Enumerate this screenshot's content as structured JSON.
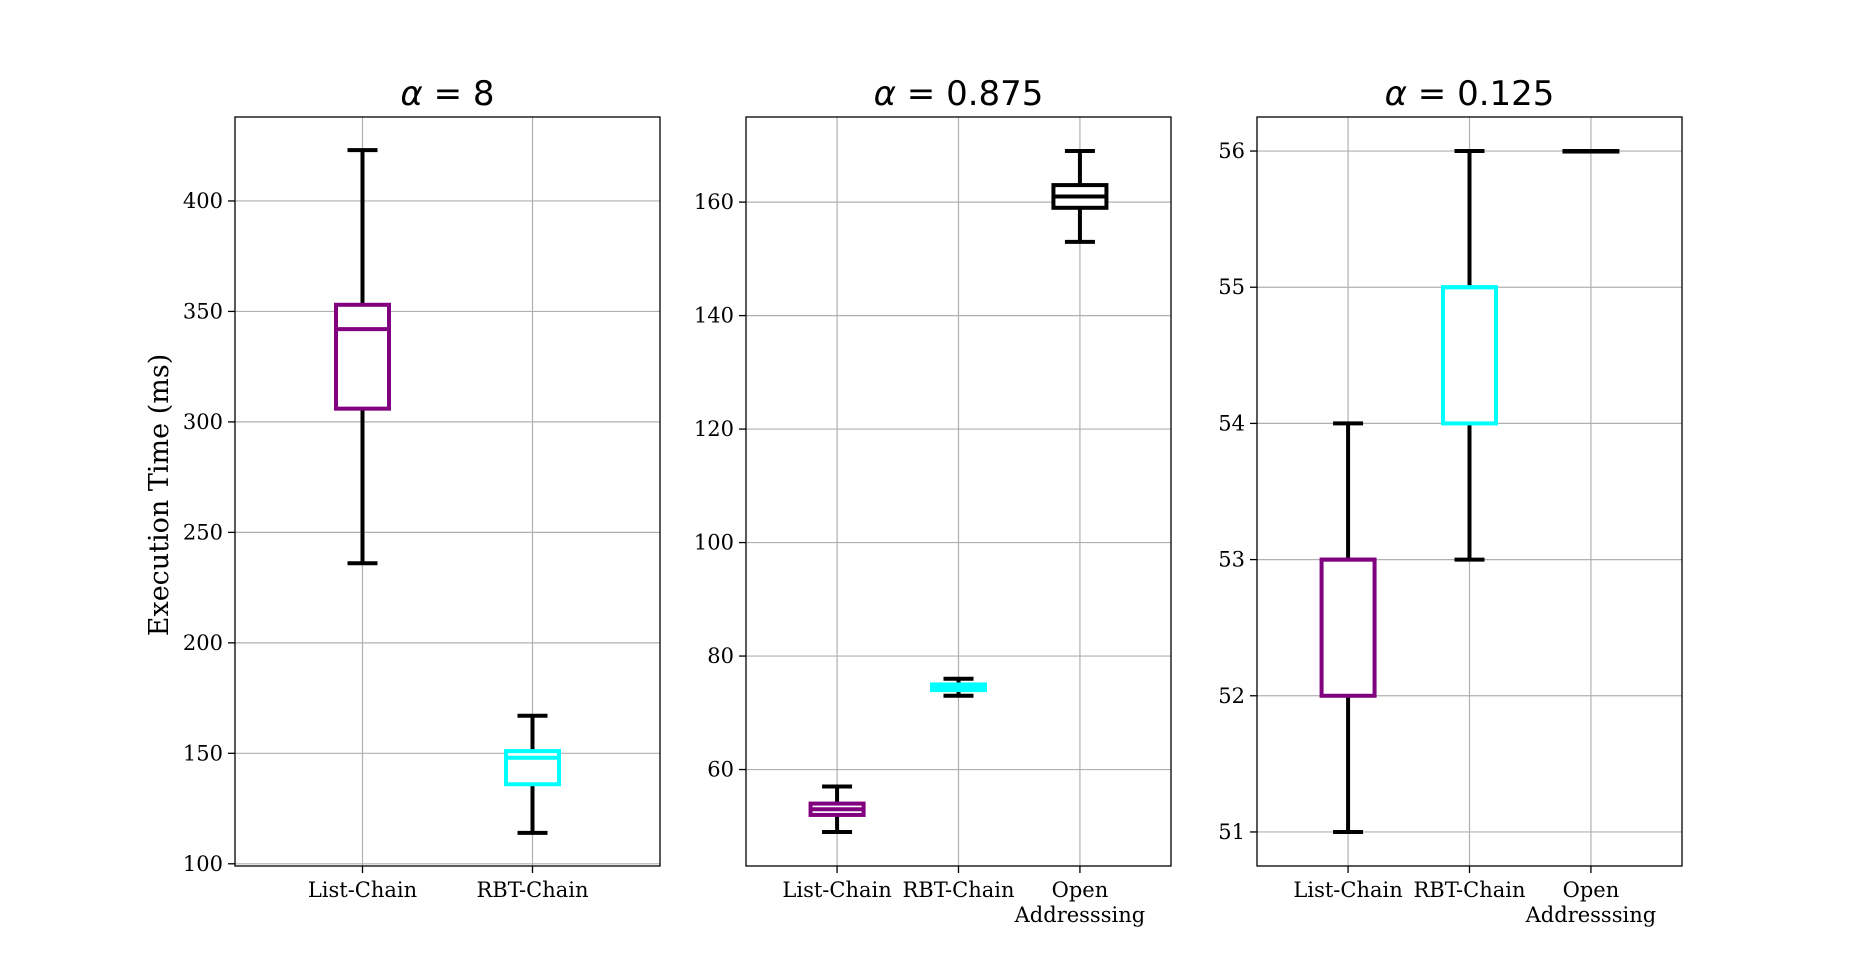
{
  "figure": {
    "ylabel": "Execution Time (ms)"
  },
  "chart_data": [
    {
      "type": "box",
      "title_symbol": "α",
      "title_value": " = 8",
      "ylim": [
        99,
        438
      ],
      "yticks": [
        100,
        150,
        200,
        250,
        300,
        350,
        400
      ],
      "grid": true,
      "categories": [
        "List-Chain",
        "RBT-Chain"
      ],
      "boxes": [
        {
          "label": "List-Chain",
          "color": "#800080",
          "whisker_low": 236,
          "q1": 306,
          "median": 342,
          "q3": 353,
          "whisker_high": 423
        },
        {
          "label": "RBT-Chain",
          "color": "#00ffff",
          "whisker_low": 114,
          "q1": 136,
          "median": 148,
          "q3": 151,
          "whisker_high": 167
        }
      ]
    },
    {
      "type": "box",
      "title_symbol": "α",
      "title_value": " = 0.875",
      "ylim": [
        43,
        175
      ],
      "yticks": [
        60,
        80,
        100,
        120,
        140,
        160
      ],
      "grid": true,
      "categories": [
        "List-Chain",
        "RBT-Chain",
        "Open Addresssing"
      ],
      "boxes": [
        {
          "label": "List-Chain",
          "color": "#800080",
          "whisker_low": 49,
          "q1": 52,
          "median": 53,
          "q3": 54,
          "whisker_high": 57
        },
        {
          "label": "RBT-Chain",
          "color": "#00ffff",
          "whisker_low": 73,
          "q1": 74,
          "median": 74.5,
          "q3": 75,
          "whisker_high": 76
        },
        {
          "label": "Open Addresssing",
          "color": "#000000",
          "whisker_low": 153,
          "q1": 159,
          "median": 161,
          "q3": 163,
          "whisker_high": 169
        }
      ]
    },
    {
      "type": "box",
      "title_symbol": "α",
      "title_value": " = 0.125",
      "ylim": [
        50.75,
        56.25
      ],
      "yticks": [
        51,
        52,
        53,
        54,
        55,
        56
      ],
      "grid": true,
      "categories": [
        "List-Chain",
        "RBT-Chain",
        "Open Addresssing"
      ],
      "boxes": [
        {
          "label": "List-Chain",
          "color": "#800080",
          "whisker_low": 51,
          "q1": 52,
          "median": 53,
          "q3": 53,
          "whisker_high": 54
        },
        {
          "label": "RBT-Chain",
          "color": "#00ffff",
          "whisker_low": 53,
          "q1": 54,
          "median": 55,
          "q3": 55,
          "whisker_high": 56
        },
        {
          "label": "Open Addresssing",
          "color": "#000000",
          "whisker_low": 56,
          "q1": 56,
          "median": 56,
          "q3": 56,
          "whisker_high": 56
        }
      ]
    }
  ]
}
